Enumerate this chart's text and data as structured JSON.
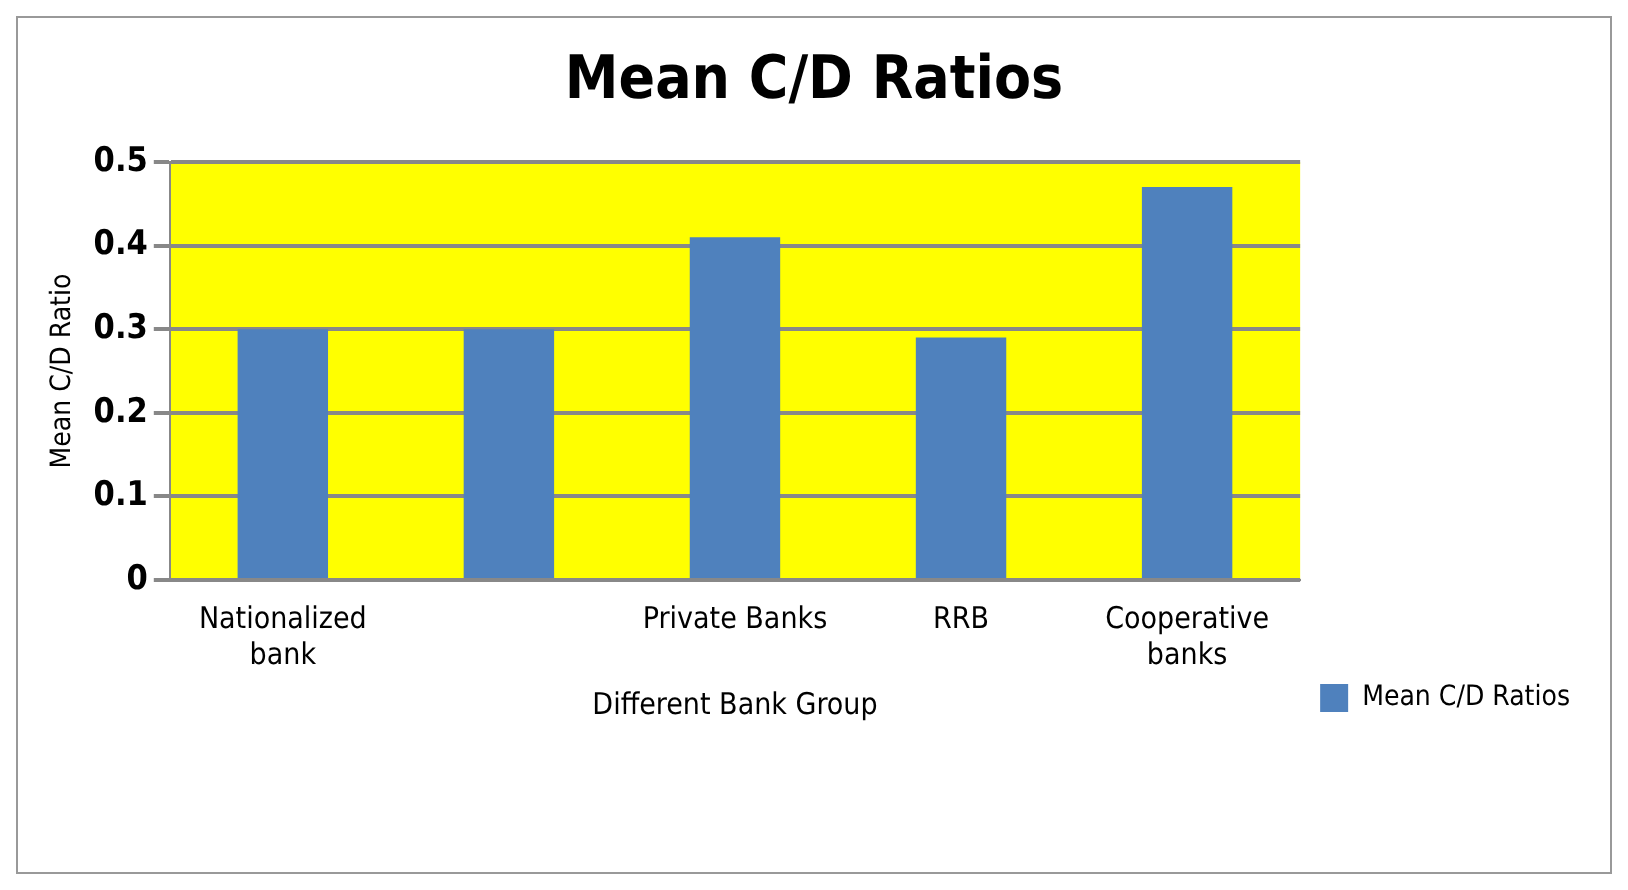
{
  "chart_data": {
    "type": "bar",
    "title": "Mean C/D Ratios",
    "xlabel": "Different Bank Group",
    "ylabel": "Mean C/D Ratio",
    "categories": [
      "Nationalized bank",
      null,
      "Private Banks",
      "RRB",
      "Cooperative banks"
    ],
    "series": [
      {
        "name": "Mean C/D Ratios",
        "color": "#4f81bd",
        "values": [
          0.3,
          0.3,
          0.41,
          0.29,
          0.47
        ]
      }
    ],
    "ylim": [
      0,
      0.5
    ],
    "yticks": [
      0,
      0.1,
      0.2,
      0.3,
      0.4,
      0.5
    ],
    "grid": "y",
    "legend": "right"
  }
}
